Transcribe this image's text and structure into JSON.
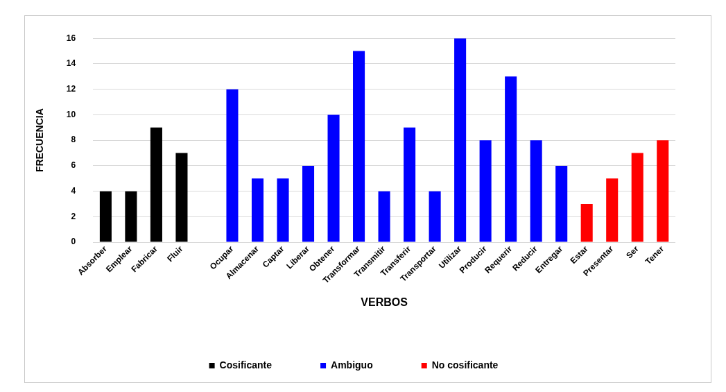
{
  "chart_data": {
    "type": "bar",
    "xlabel": "VERBOS",
    "ylabel": "FRECUENCIA",
    "categories": [
      "Absorber",
      "Emplear",
      "Fabricar",
      "Fluir",
      null,
      "Ocupar",
      "Almacenar",
      "Captar",
      "Liberar",
      "Obtener",
      "Transformar",
      "Transmitir",
      "Transferir",
      "Transportar",
      "Utilizar",
      "Producir",
      "Requerir",
      "Reducir",
      "Entregar",
      "Estar",
      "Presentar",
      "Ser",
      "Tener"
    ],
    "stacked": true,
    "series": [
      {
        "name": "Cosificante",
        "color": "#000000",
        "values": [
          4,
          4,
          9,
          7,
          null,
          null,
          null,
          null,
          null,
          null,
          null,
          null,
          null,
          null,
          null,
          null,
          null,
          null,
          null,
          null,
          null,
          null,
          null
        ]
      },
      {
        "name": "Ambiguo",
        "color": "#0000ff",
        "values": [
          null,
          null,
          null,
          null,
          null,
          12,
          5,
          5,
          6,
          10,
          15,
          4,
          9,
          4,
          16,
          8,
          13,
          8,
          6,
          null,
          null,
          null,
          null
        ]
      },
      {
        "name": "No cosificante",
        "color": "#ff0000",
        "values": [
          null,
          null,
          null,
          null,
          null,
          null,
          null,
          null,
          null,
          null,
          null,
          null,
          null,
          null,
          null,
          null,
          null,
          null,
          null,
          3,
          5,
          7,
          8
        ]
      }
    ],
    "ylim": [
      0,
      16
    ],
    "yticks": [
      0,
      2,
      4,
      6,
      8,
      10,
      12,
      14,
      16
    ],
    "grid": "y",
    "legend": "bottom"
  }
}
